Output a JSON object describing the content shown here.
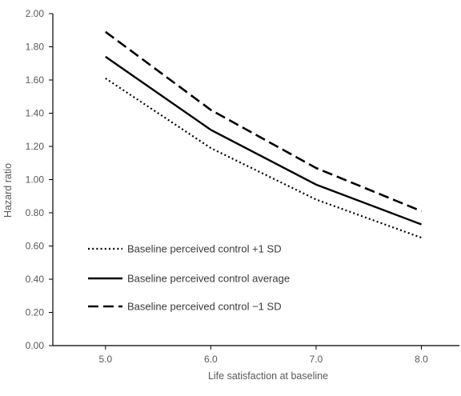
{
  "chart_data": {
    "type": "line",
    "title": "",
    "xlabel": "Life satisfaction at baseline",
    "ylabel": "Hazard ratio",
    "x": [
      5.0,
      6.0,
      7.0,
      8.0
    ],
    "x_tick_labels": [
      "5.0",
      "6.0",
      "7.0",
      "8.0"
    ],
    "xlim": [
      4.5,
      8.3
    ],
    "ylim": [
      0,
      2.0
    ],
    "y_ticks": [
      0,
      0.2,
      0.4,
      0.6,
      0.8,
      1.0,
      1.2,
      1.4,
      1.6,
      1.8,
      2.0
    ],
    "y_tick_labels": [
      "0.00",
      "0.20",
      "0.40",
      "0.60",
      "0.80",
      "1.00",
      "1.20",
      "1.40",
      "1.60",
      "1.80",
      "2.00"
    ],
    "grid": false,
    "legend_position": "bottom-left",
    "line_color": "#000000",
    "axis_color": "#000000",
    "text_color": "#595959",
    "series": [
      {
        "name": "Baseline perceived control +1 SD",
        "style": "dotted",
        "values": [
          1.61,
          1.19,
          0.88,
          0.65
        ]
      },
      {
        "name": "Baseline perceived control average",
        "style": "solid",
        "values": [
          1.74,
          1.3,
          0.97,
          0.73
        ]
      },
      {
        "name": "Baseline perceived control −1 SD",
        "style": "dashed",
        "values": [
          1.89,
          1.42,
          1.07,
          0.81
        ]
      }
    ]
  }
}
